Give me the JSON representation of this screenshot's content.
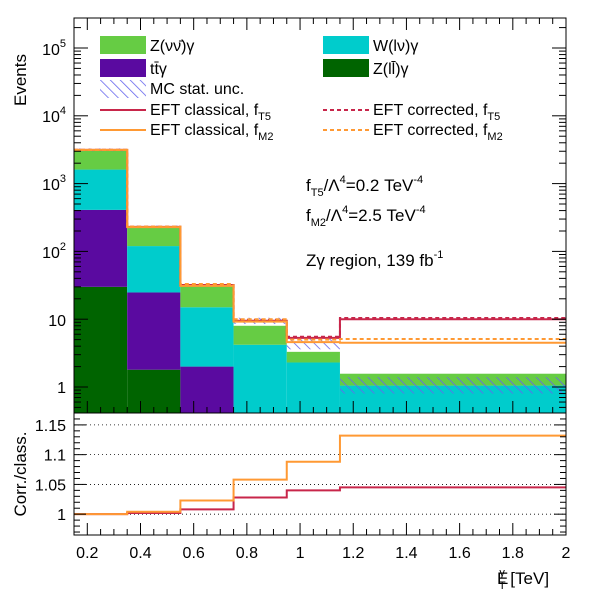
{
  "chart_data": [
    {
      "type": "bar",
      "stacked": true,
      "ylabel": "Events",
      "yscale": "log",
      "ylim": [
        0.2,
        200000
      ],
      "bin_edges": [
        0.15,
        0.35,
        0.55,
        0.75,
        0.95,
        1.15,
        2.0
      ],
      "series": [
        {
          "name": "Z(ll)γ",
          "legend": "Z(l̅l)γ",
          "color": "#006400",
          "values": [
            30,
            1.8,
            0.2,
            0.2,
            0.2,
            0.2
          ]
        },
        {
          "name": "ttγ",
          "legend": "tt̅γ",
          "color": "#5a0aa0",
          "values": [
            380,
            23,
            1.8,
            0.2,
            0.2,
            0.2
          ]
        },
        {
          "name": "W(lν)γ",
          "color": "#00cccc",
          "values": [
            1200,
            95,
            13,
            3.8,
            1.9,
            0.65
          ]
        },
        {
          "name": "Z(νν)γ",
          "legend": "Z(νν̅)γ",
          "color": "#66cc44",
          "values": [
            1530,
            111,
            17,
            3.8,
            1.0,
            0.52
          ]
        }
      ],
      "mc_stat_unc": {
        "label": "MC stat. unc.",
        "color": "#6666ee",
        "low": [
          3000,
          220,
          30,
          8.5,
          3.6,
          0.8
        ],
        "high": [
          3300,
          240,
          33,
          10.5,
          5.1,
          1.4
        ]
      },
      "eft_lines": [
        {
          "name": "EFT classical, f_T5",
          "color": "#c8264a",
          "dashed": false,
          "values": [
            3150,
            230,
            32,
            9.5,
            5.3,
            10.0
          ]
        },
        {
          "name": "EFT corrected, f_T5",
          "color": "#c8264a",
          "dashed": true,
          "values": [
            3150,
            231,
            32,
            9.8,
            5.5,
            10.4
          ]
        },
        {
          "name": "EFT classical, f_M2",
          "color": "#ff9933",
          "dashed": false,
          "values": [
            3140,
            228,
            31,
            9.2,
            4.6,
            4.5
          ]
        },
        {
          "name": "EFT corrected, f_M2",
          "color": "#ff9933",
          "dashed": true,
          "values": [
            3145,
            232,
            33,
            10.0,
            5.0,
            5.1
          ]
        }
      ],
      "annotations": {
        "line1": "f_T5/Λ^4=0.2 TeV^-4",
        "line2": "f_M2/Λ^4=2.5 TeV^-4",
        "line3": "Zγ region, 139 fb^-1"
      },
      "yticks": [
        "1",
        "10",
        "10^2",
        "10^3",
        "10^4",
        "10^5"
      ]
    },
    {
      "type": "line",
      "ylabel": "Corr./class.",
      "xlabel": "E_T^γ [TeV]",
      "ylim": [
        0.965,
        1.17
      ],
      "xlim": [
        0.15,
        2.0
      ],
      "grid": "horizontal dotted",
      "bin_edges": [
        0.15,
        0.35,
        0.55,
        0.75,
        0.95,
        1.15,
        2.0
      ],
      "series": [
        {
          "name": "f_T5 ratio",
          "color": "#c8264a",
          "values": [
            1.0,
            1.002,
            1.008,
            1.028,
            1.04,
            1.045
          ]
        },
        {
          "name": "f_M2 ratio",
          "color": "#ff9933",
          "values": [
            1.0,
            1.004,
            1.023,
            1.058,
            1.088,
            1.132
          ]
        }
      ],
      "yticks": [
        "1",
        "1.05",
        "1.1",
        "1.15"
      ],
      "xticks": [
        "0.2",
        "0.4",
        "0.6",
        "0.8",
        "1",
        "1.2",
        "1.4",
        "1.6",
        "1.8",
        "2"
      ]
    }
  ]
}
